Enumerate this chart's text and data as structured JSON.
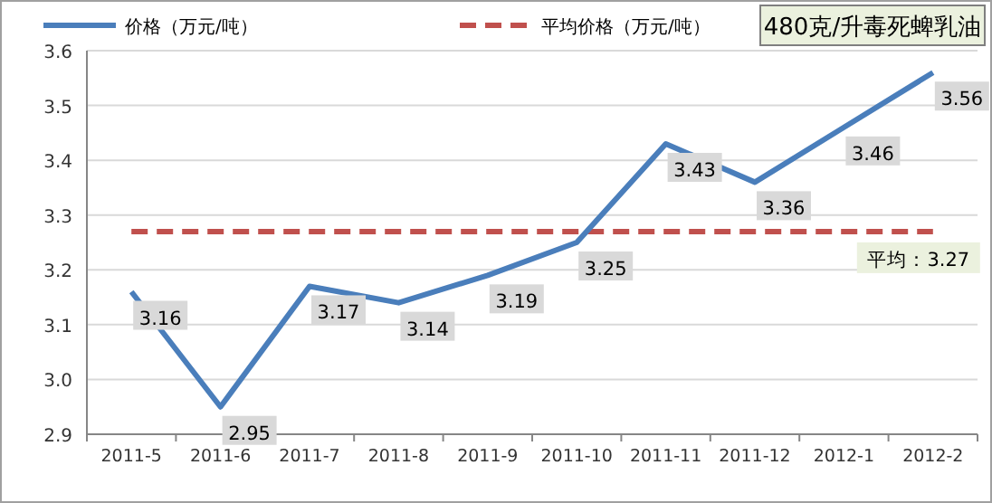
{
  "chart_data": {
    "type": "line",
    "title": "480克/升毒死蜱乳油",
    "categories": [
      "2011-5",
      "2011-6",
      "2011-7",
      "2011-8",
      "2011-9",
      "2011-10",
      "2011-11",
      "2011-12",
      "2012-1",
      "2012-2"
    ],
    "series": [
      {
        "name": "价格（万元/吨）",
        "color": "#4a7ebb",
        "line_style": "solid",
        "values": [
          3.16,
          2.95,
          3.17,
          3.14,
          3.19,
          3.25,
          3.43,
          3.36,
          3.46,
          3.56
        ],
        "value_labels": [
          "3.16",
          "2.95",
          "3.17",
          "3.14",
          "3.19",
          "3.25",
          "3.43",
          "3.36",
          "3.46",
          "3.56"
        ]
      },
      {
        "name": "平均价格（万元/吨）",
        "color": "#c0504d",
        "line_style": "dashed",
        "values": [
          3.27,
          3.27,
          3.27,
          3.27,
          3.27,
          3.27,
          3.27,
          3.27,
          3.27,
          3.27
        ]
      }
    ],
    "annotations": [
      {
        "text": "平均：3.27",
        "x": "2012-2",
        "y": 3.27
      }
    ],
    "ylim": [
      2.9,
      3.6
    ],
    "yticks": [
      2.9,
      {
        "value": 3,
        "label": "3.0"
      },
      3.1,
      3.2,
      3.3,
      3.4,
      3.5,
      3.6
    ],
    "grid": "y",
    "legend": "top left",
    "marker": "none"
  }
}
